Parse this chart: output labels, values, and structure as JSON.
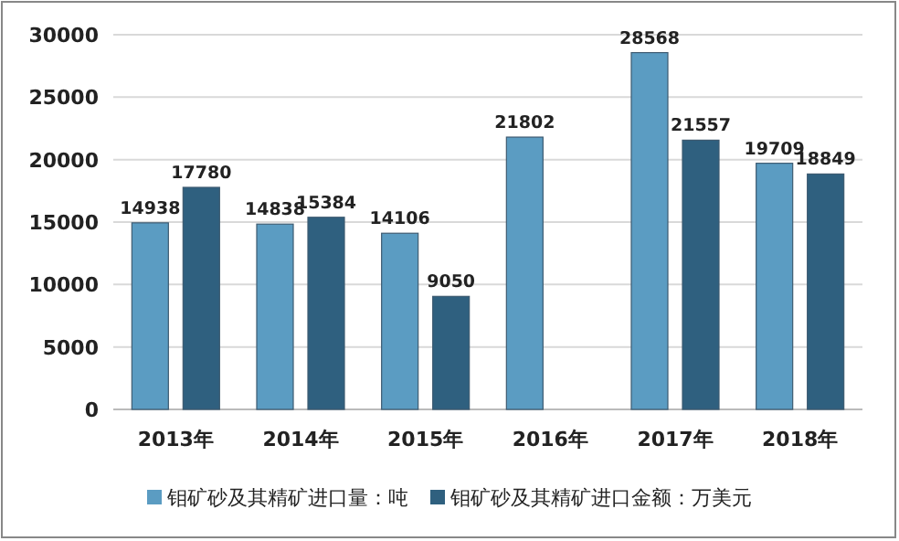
{
  "chart_data": {
    "type": "bar",
    "categories": [
      "2013年",
      "2014年",
      "2015年",
      "2016年",
      "2017年",
      "2018年"
    ],
    "series": [
      {
        "name": "钼矿砂及其精矿进口量：吨",
        "color": "#5b9cc2",
        "values": [
          14938,
          14838,
          14106,
          21802,
          28568,
          19709
        ]
      },
      {
        "name": "钼矿砂及其精矿进口金额：万美元",
        "color": "#2f607f",
        "values": [
          17780,
          15384,
          9050,
          null,
          21557,
          18849
        ]
      }
    ],
    "ylim": [
      0,
      30000
    ],
    "yticks": [
      0,
      5000,
      10000,
      15000,
      20000,
      25000,
      30000
    ],
    "grid": "y",
    "legend": "bottom",
    "data_labels": true
  }
}
